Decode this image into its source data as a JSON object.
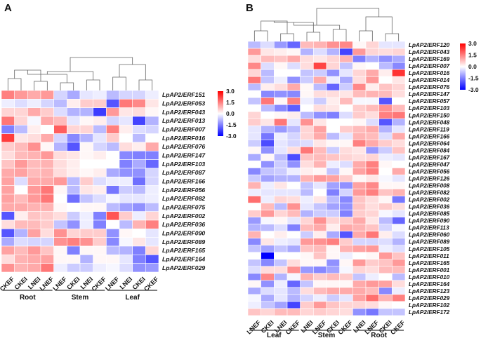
{
  "chart_data": [
    {
      "type": "heatmap",
      "panel_label": "A",
      "color_scale": {
        "min": -3.0,
        "max": 3.0,
        "low_color": "#0000ff",
        "mid_color": "#ffffff",
        "high_color": "#ff0000",
        "ticks": [
          "3.0",
          "1.5",
          "0.0",
          "-1.5",
          "-3.0"
        ]
      },
      "columns": [
        "CKEF",
        "CKEI",
        "LNEI",
        "LNEF",
        "LNEF",
        "CKEI",
        "LNEI",
        "CKEF",
        "LNEF",
        "LNEI",
        "CKEI",
        "CKEF"
      ],
      "groups": [
        {
          "name": "Root",
          "span": 4
        },
        {
          "name": "Stem",
          "span": 4
        },
        {
          "name": "Leaf",
          "span": 4
        }
      ],
      "rows": [
        "LpAP2/ERF151",
        "LpAP2/ERF053",
        "LpAP2/ERF043",
        "LpAP2/ERF013",
        "LpAP2/ERF007",
        "LpAP2/ERF016",
        "LpAP2/ERF076",
        "LpAP2/ERF147",
        "LpAP2/ERF103",
        "LpAP2/ERF087",
        "LpAP2/ERF166",
        "LpAP2/ERF056",
        "LpAP2/ERF082",
        "LpAP2/ERF075",
        "LpAP2/ERF002",
        "LpAP2/ERF036",
        "LpAP2/ERF090",
        "LpAP2/ERF089",
        "LpAP2/ERF165",
        "LpAP2/ERF164",
        "LpAP2/ERF029"
      ],
      "values": [
        [
          1.5,
          1.2,
          1.0,
          1.2,
          -0.5,
          -1.0,
          -0.3,
          -0.2,
          -0.8,
          -0.5,
          -0.5,
          -0.2
        ],
        [
          -0.2,
          -0.4,
          -0.2,
          -0.5,
          -0.8,
          0.2,
          0.6,
          0.6,
          -2.0,
          1.6,
          1.4,
          0.3
        ],
        [
          0.5,
          0.5,
          1.0,
          0.6,
          -0.4,
          -0.9,
          -0.9,
          -2.3,
          1.2,
          0.3,
          0.4,
          0.1
        ],
        [
          1.6,
          0.5,
          -0.1,
          1.0,
          0.8,
          -0.3,
          0.1,
          0.2,
          -0.5,
          -0.3,
          -2.2,
          -0.9
        ],
        [
          -1.5,
          -0.8,
          0.2,
          0.0,
          1.9,
          0.5,
          0.5,
          -0.8,
          1.5,
          0.2,
          -0.4,
          -0.5
        ],
        [
          2.3,
          0.3,
          0.4,
          1.0,
          -0.5,
          -1.4,
          -0.9,
          -0.3,
          0.6,
          0.0,
          -0.8,
          0.0
        ],
        [
          0.6,
          0.8,
          1.3,
          0.1,
          -0.9,
          -2.0,
          0.1,
          -0.5,
          -0.8,
          0.4,
          0.2,
          1.0
        ],
        [
          0.4,
          0.8,
          0.9,
          1.2,
          0.4,
          0.3,
          0.1,
          0.2,
          0.0,
          -1.4,
          -1.5,
          -1.5
        ],
        [
          0.7,
          1.2,
          0.8,
          0.9,
          0.4,
          0.2,
          0.0,
          0.0,
          0.0,
          -1.5,
          -1.0,
          -1.8
        ],
        [
          1.0,
          1.1,
          0.8,
          0.9,
          0.4,
          0.2,
          0.1,
          0.2,
          -1.0,
          -1.3,
          -1.3,
          -0.5
        ],
        [
          1.1,
          -0.4,
          1.0,
          1.0,
          1.2,
          -0.8,
          0.6,
          -0.4,
          -0.2,
          -0.2,
          -1.7,
          -0.5
        ],
        [
          1.1,
          0.0,
          1.2,
          1.6,
          0.1,
          -0.8,
          0.3,
          0.2,
          -1.6,
          -0.6,
          -0.8,
          -0.2
        ],
        [
          1.1,
          0.8,
          1.2,
          1.6,
          0.0,
          -1.7,
          -0.7,
          -0.4,
          -0.1,
          -0.3,
          -0.3,
          -0.2
        ],
        [
          1.0,
          1.0,
          0.9,
          0.9,
          0.1,
          0.0,
          0.1,
          0.1,
          -0.8,
          -1.1,
          -1.3,
          -0.8
        ],
        [
          -2.0,
          0.2,
          0.7,
          0.6,
          0.4,
          -0.6,
          -0.2,
          -1.5,
          2.0,
          0.6,
          -0.2,
          0.5
        ],
        [
          0.4,
          0.8,
          0.8,
          0.6,
          -0.7,
          -1.3,
          -0.2,
          -1.5,
          0.0,
          -0.8,
          0.9,
          1.5
        ],
        [
          -2.0,
          -0.9,
          1.1,
          0.4,
          1.3,
          0.5,
          0.6,
          0.6,
          -1.3,
          0.1,
          0.0,
          -0.3
        ],
        [
          -1.0,
          -0.4,
          -0.5,
          -0.5,
          1.3,
          1.5,
          1.3,
          0.6,
          -1.4,
          -0.1,
          0.3,
          -0.3
        ],
        [
          1.1,
          0.8,
          1.2,
          0.7,
          0.1,
          -1.5,
          0.1,
          0.1,
          -0.8,
          -0.9,
          -1.5,
          0.5
        ],
        [
          0.4,
          0.9,
          1.0,
          1.1,
          0.1,
          0.1,
          -0.9,
          0.1,
          0.1,
          -0.3,
          -1.5,
          -2.0
        ],
        [
          1.3,
          0.9,
          1.0,
          1.6,
          -0.2,
          -0.6,
          -0.6,
          -0.2,
          -0.1,
          -0.4,
          -1.3,
          -1.2
        ]
      ],
      "column_dendrogram": true
    },
    {
      "type": "heatmap",
      "panel_label": "B",
      "color_scale": {
        "min": -3.0,
        "max": 3.0,
        "low_color": "#0000ff",
        "mid_color": "#ffffff",
        "high_color": "#ff0000",
        "ticks": [
          "3.0",
          "1.5",
          "0.0",
          "-1.5",
          "-3.0"
        ]
      },
      "columns": [
        "LNEF",
        "CKEI",
        "LNEI",
        "CKEF",
        "LNEI",
        "LNEF",
        "CKEI",
        "CKEF",
        "LNEI",
        "LNEF",
        "CKEI",
        "CKEF"
      ],
      "groups": [
        {
          "name": "Leaf",
          "span": 4
        },
        {
          "name": "Stem",
          "span": 4
        },
        {
          "name": "Root",
          "span": 4
        }
      ],
      "rows": [
        "LpAP2/ERF120",
        "LpAP2/ERF043",
        "LpAP2/ERF169",
        "LpAP2/ERF007",
        "LpAP2/ERF016",
        "LpAP2/ERF014",
        "LpAP2/ERF076",
        "LpAP2/ERF147",
        "LpAP2/ERF057",
        "LpAP2/ERF103",
        "LpAP2/ERF150",
        "LpAP2/ERF048",
        "LpAP2/ERF119",
        "LpAP2/ERF166",
        "LpAP2/ERF064",
        "LpAP2/ERF084",
        "LpAP2/ERF167",
        "LpAP2/ERF047",
        "LpAP2/ERF056",
        "LpAP2/ERF126",
        "LpAP2/ERF008",
        "LpAP2/ERF082",
        "LpAP2/ERF002",
        "LpAP2/ERF036",
        "LpAP2/ERF085",
        "LpAP2/ERF090",
        "LpAP2/ERF113",
        "LpAP2/ERF060",
        "LpAP2/ERF089",
        "LpAP2/ERF105",
        "LpAP2/ERF011",
        "LpAP2/ERF165",
        "LpAP2/ERF001",
        "LpAP2/ERF010",
        "LpAP2/ERF164",
        "LpAP2/ERF123",
        "LpAP2/ERF029",
        "LpAP2/ERF102",
        "LpAP2/ERF172"
      ],
      "values": [
        [
          -0.8,
          -0.4,
          -1.2,
          -1.8,
          0.8,
          0.9,
          1.3,
          1.4,
          0.1,
          0.5,
          -0.3,
          -0.3
        ],
        [
          1.2,
          0.3,
          0.2,
          0.1,
          -0.9,
          -0.4,
          -0.9,
          -2.2,
          1.2,
          0.5,
          0.4,
          0.5
        ],
        [
          0.4,
          0.8,
          0.7,
          1.0,
          0.4,
          0.3,
          0.5,
          0.9,
          -1.5,
          -0.9,
          -1.3,
          -1.0
        ],
        [
          1.4,
          -0.4,
          0.1,
          -0.4,
          0.4,
          2.2,
          0.5,
          -0.7,
          0.1,
          0.0,
          -0.8,
          -1.4
        ],
        [
          0.5,
          -0.8,
          0.0,
          0.0,
          -0.7,
          -0.6,
          -1.3,
          -0.3,
          0.5,
          1.0,
          0.2,
          2.4
        ],
        [
          1.6,
          -0.7,
          -0.2,
          -1.3,
          -0.6,
          1.0,
          -0.2,
          -1.0,
          0.4,
          1.2,
          0.0,
          0.3
        ],
        [
          -0.8,
          0.2,
          0.4,
          1.0,
          0.1,
          -0.8,
          -1.8,
          -0.6,
          1.4,
          0.2,
          0.7,
          0.5
        ],
        [
          0.0,
          -1.4,
          -1.3,
          -1.4,
          0.1,
          0.4,
          0.4,
          0.3,
          0.8,
          0.9,
          0.8,
          0.4
        ],
        [
          -0.7,
          1.6,
          0.1,
          1.5,
          -0.2,
          -0.6,
          0.2,
          0.8,
          -0.1,
          -0.1,
          -2.0,
          0.0
        ],
        [
          0.0,
          -0.8,
          -1.4,
          -1.9,
          0.0,
          0.4,
          0.3,
          0.0,
          0.6,
          0.8,
          1.3,
          0.8
        ],
        [
          0.5,
          0.0,
          0.1,
          0.2,
          -0.8,
          -1.3,
          -1.5,
          -0.4,
          0.6,
          0.4,
          1.5,
          1.6
        ],
        [
          0.6,
          0.3,
          1.6,
          -0.3,
          1.3,
          0.3,
          0.0,
          0.0,
          0.1,
          -0.4,
          -2.0,
          -0.9
        ],
        [
          -0.3,
          -0.9,
          -1.2,
          -0.8,
          0.5,
          1.1,
          0.0,
          0.6,
          0.8,
          1.0,
          -0.9,
          -0.3
        ],
        [
          -0.3,
          -1.6,
          -0.2,
          -0.5,
          0.5,
          1.0,
          -0.8,
          -0.3,
          0.9,
          0.8,
          -0.4,
          1.0
        ],
        [
          -0.6,
          -2.1,
          -0.3,
          -0.5,
          -0.4,
          0.3,
          0.1,
          0.1,
          1.5,
          1.0,
          0.6,
          0.4
        ],
        [
          0.1,
          -1.3,
          -0.3,
          0.4,
          1.6,
          0.8,
          -0.6,
          0.4,
          0.3,
          -1.2,
          -0.6,
          0.7
        ],
        [
          -1.0,
          0.1,
          -0.8,
          -2.1,
          0.7,
          0.8,
          0.7,
          0.5,
          0.4,
          0.5,
          -0.2,
          -0.3
        ],
        [
          0.0,
          -1.3,
          -0.6,
          -1.3,
          0.4,
          0.9,
          -0.2,
          -0.4,
          1.0,
          1.5,
          0.1,
          0.0
        ],
        [
          -1.4,
          -0.7,
          -0.6,
          -0.2,
          0.2,
          0.1,
          -0.7,
          0.1,
          1.1,
          1.5,
          0.0,
          1.0
        ],
        [
          -0.6,
          -1.1,
          -0.9,
          -0.9,
          0.9,
          1.2,
          1.1,
          0.6,
          0.1,
          0.3,
          -0.1,
          -0.3
        ],
        [
          0.9,
          -0.2,
          0.3,
          0.0,
          -0.7,
          -0.3,
          -1.1,
          -1.3,
          1.1,
          1.4,
          0.1,
          0.1
        ],
        [
          -0.2,
          -0.3,
          -0.3,
          -0.3,
          -0.8,
          0.0,
          -1.5,
          -0.5,
          1.2,
          1.5,
          0.7,
          0.9
        ],
        [
          1.7,
          -0.2,
          0.5,
          0.4,
          -0.2,
          0.3,
          -0.8,
          -1.4,
          0.7,
          0.4,
          0.1,
          -1.6
        ],
        [
          0.0,
          0.8,
          -0.8,
          1.3,
          -0.3,
          -0.7,
          -1.1,
          -1.3,
          0.7,
          0.4,
          0.6,
          0.4
        ],
        [
          0.6,
          1.2,
          0.5,
          0.8,
          -0.9,
          -0.6,
          -0.6,
          -1.5,
          0.6,
          0.5,
          -0.1,
          -0.3
        ],
        [
          -1.2,
          -0.1,
          0.1,
          -0.3,
          0.5,
          1.3,
          0.5,
          0.6,
          1.0,
          0.3,
          -0.8,
          -1.8
        ],
        [
          -0.9,
          -0.8,
          -0.4,
          -1.5,
          0.8,
          1.0,
          0.2,
          1.0,
          0.9,
          0.7,
          -0.5,
          -0.1
        ],
        [
          0.9,
          0.0,
          0.2,
          0.0,
          -0.6,
          0.2,
          -1.0,
          -2.0,
          1.0,
          1.6,
          0.2,
          -0.4
        ],
        [
          -1.4,
          0.3,
          -0.2,
          -0.3,
          1.2,
          1.3,
          1.5,
          0.6,
          -0.5,
          -0.5,
          -0.4,
          -0.9
        ],
        [
          -0.7,
          -1.1,
          -0.7,
          -1.0,
          0.7,
          0.8,
          0.1,
          0.9,
          1.1,
          1.2,
          -0.2,
          -0.4
        ],
        [
          0.0,
          -3.0,
          0.0,
          0.0,
          0.1,
          0.7,
          0.1,
          -0.2,
          0.0,
          0.1,
          1.2,
          0.7
        ],
        [
          -0.7,
          -1.4,
          -0.7,
          0.4,
          0.1,
          0.1,
          -1.3,
          0.1,
          1.2,
          0.6,
          0.7,
          1.2
        ],
        [
          -0.4,
          0.4,
          0.4,
          1.3,
          -1.2,
          -1.4,
          -1.1,
          -0.1,
          0.5,
          0.4,
          0.8,
          0.8
        ],
        [
          -1.4,
          1.4,
          -0.9,
          -0.1,
          0.9,
          0.6,
          0.8,
          0.6,
          -0.7,
          -0.2,
          0.0,
          -0.8
        ],
        [
          0.1,
          -1.3,
          -0.2,
          -1.8,
          -0.7,
          0.1,
          0.1,
          0.1,
          1.0,
          1.2,
          1.1,
          0.4
        ],
        [
          -1.0,
          -0.4,
          -0.3,
          -0.8,
          0.4,
          0.8,
          1.0,
          1.0,
          1.0,
          0.8,
          -1.4,
          -0.2
        ],
        [
          -0.1,
          -1.0,
          -0.3,
          -0.9,
          -0.5,
          -0.2,
          -0.6,
          -0.3,
          1.1,
          1.7,
          0.9,
          1.5
        ],
        [
          -0.2,
          -0.7,
          -1.1,
          -2.2,
          0.6,
          1.2,
          0.7,
          0.5,
          0.5,
          0.4,
          0.1,
          0.0
        ],
        [
          0.7,
          0.5,
          0.8,
          0.8,
          0.5,
          0.6,
          0.5,
          0.4,
          -1.3,
          -1.6,
          -0.7,
          -0.7
        ]
      ],
      "column_dendrogram": true
    }
  ]
}
